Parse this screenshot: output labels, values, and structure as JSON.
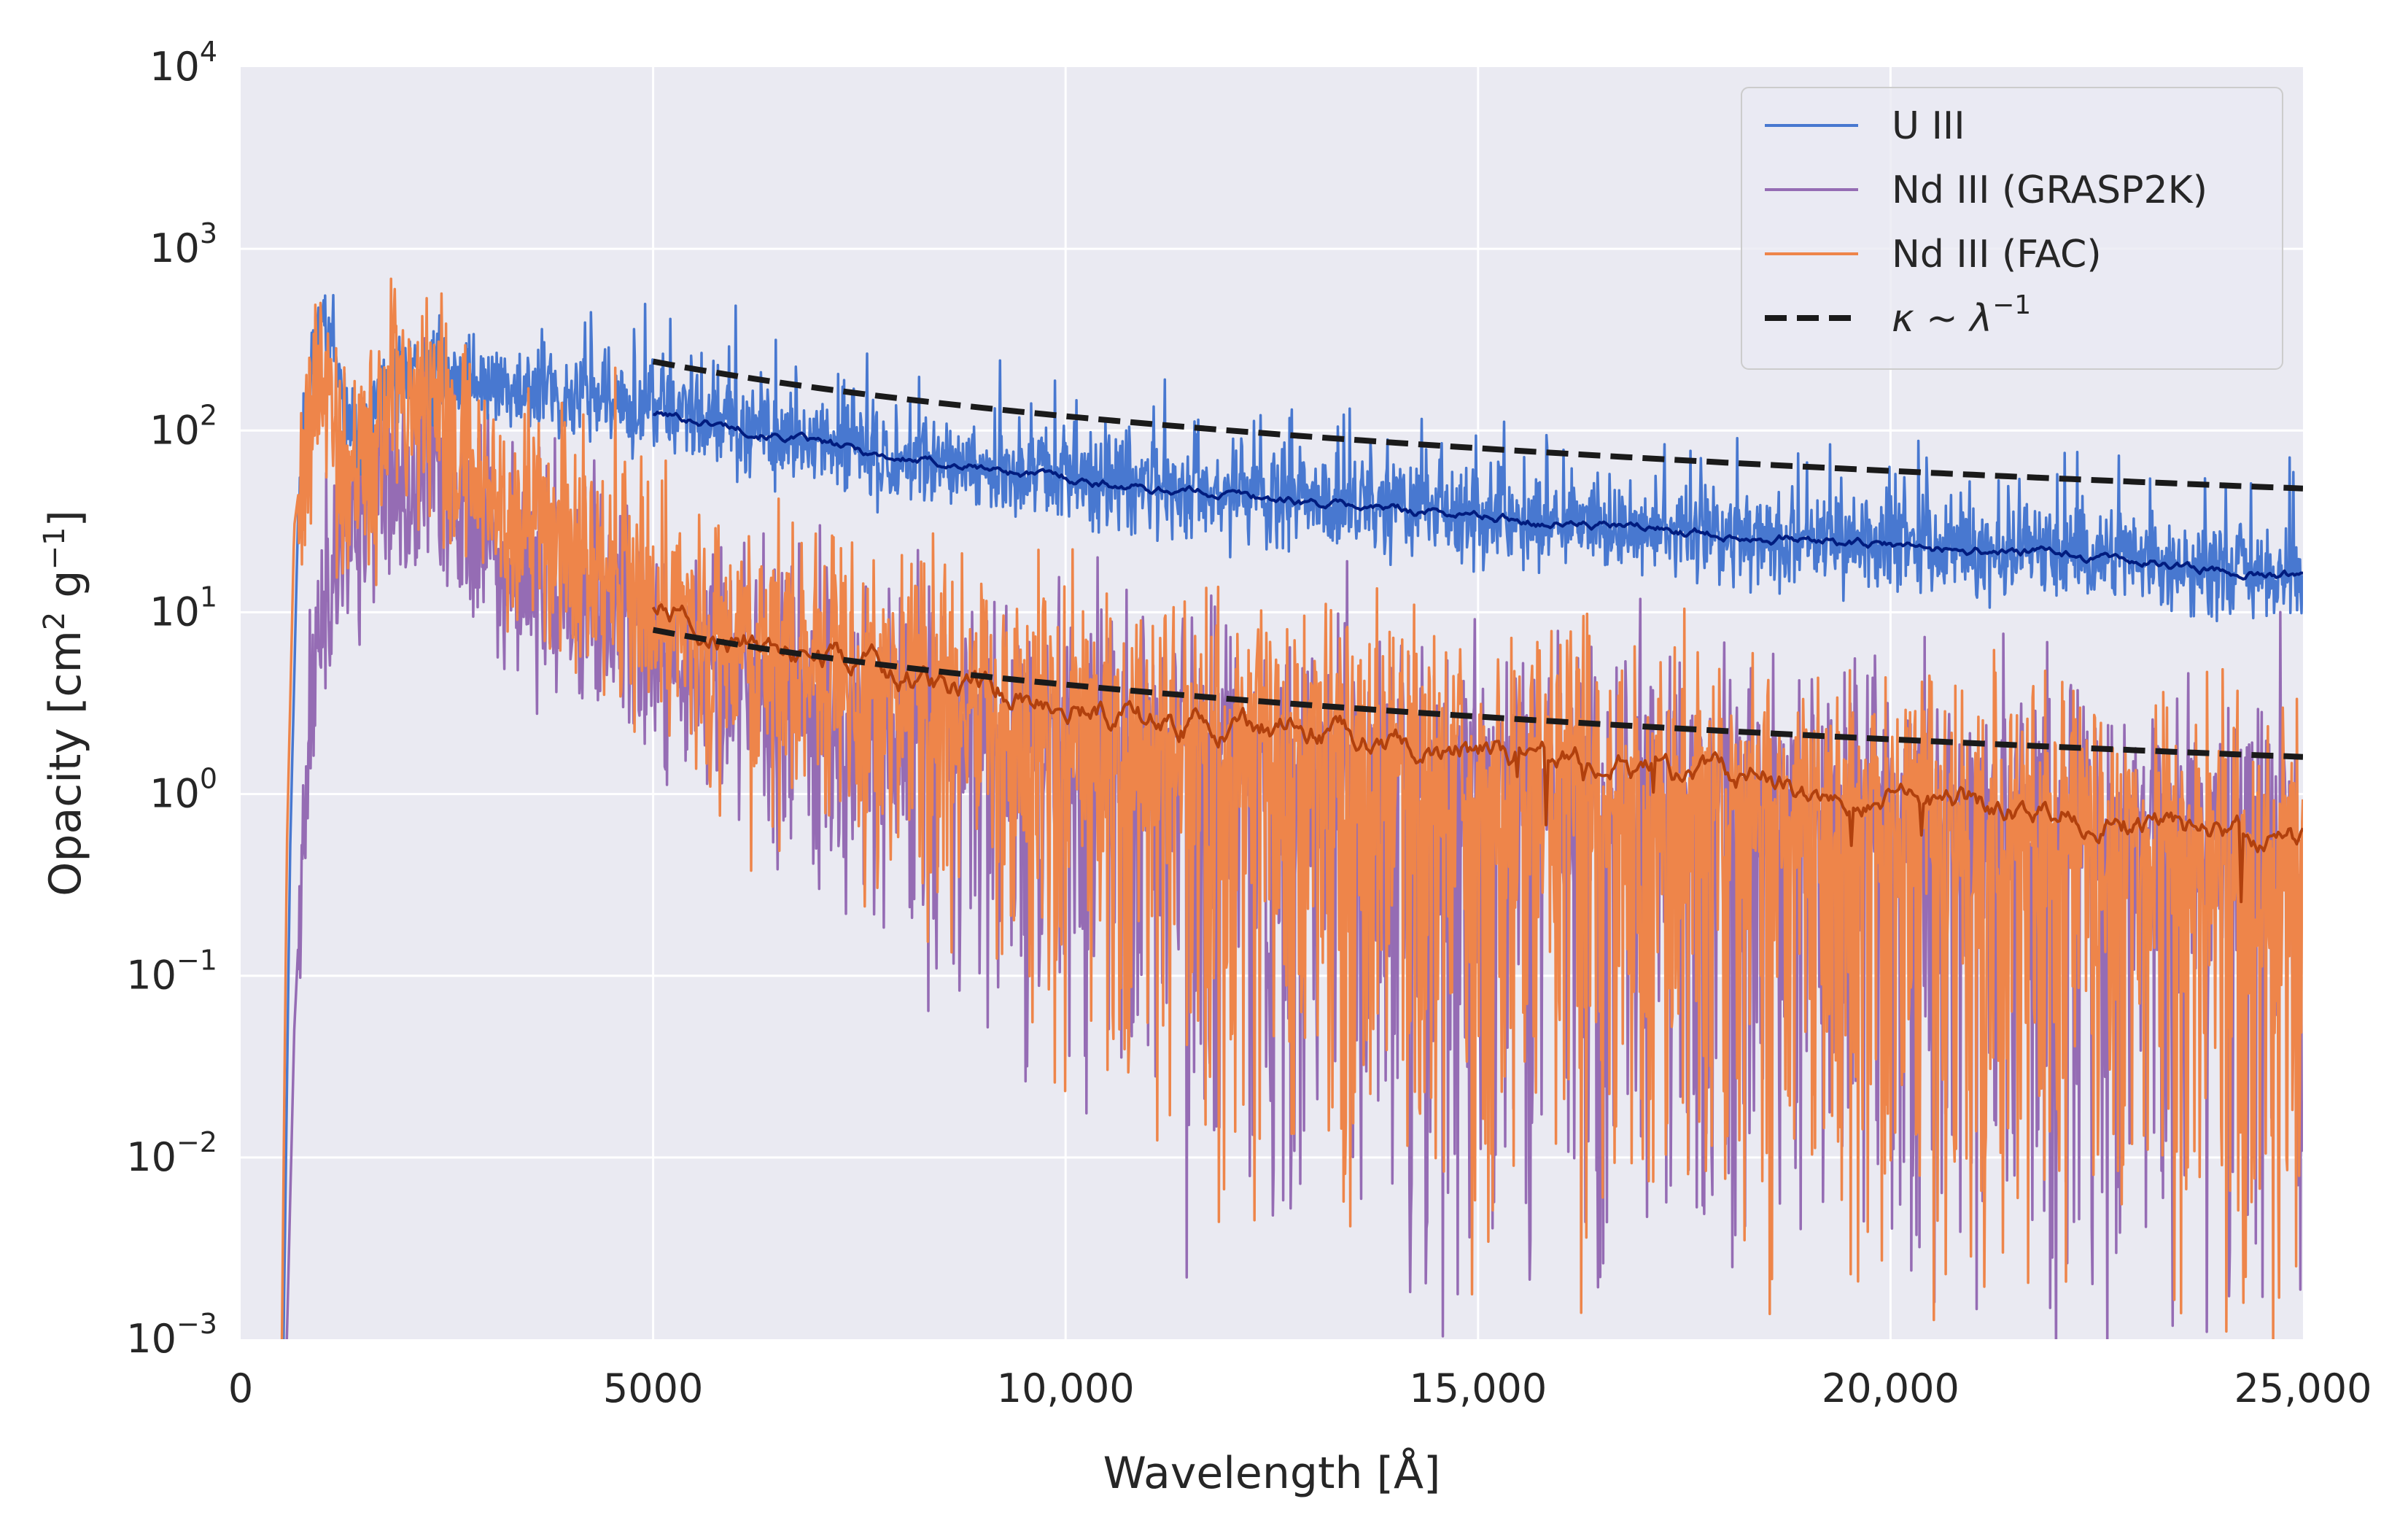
{
  "chart_data": {
    "type": "line",
    "title": "",
    "xlabel": "Wavelength [Å]",
    "ylabel": "Opacity [cm² g⁻¹]",
    "xlim": [
      0,
      25000
    ],
    "ylim": [
      0.001,
      10000
    ],
    "yscale": "log",
    "grid": true,
    "legend_position": "top-right",
    "x_ticks": [
      {
        "value": 0,
        "label": "0"
      },
      {
        "value": 5000,
        "label": "5000"
      },
      {
        "value": 10000,
        "label": "10,000"
      },
      {
        "value": 15000,
        "label": "15,000"
      },
      {
        "value": 20000,
        "label": "20,000"
      },
      {
        "value": 25000,
        "label": "25,000"
      }
    ],
    "y_ticks": [
      {
        "value": 0.001,
        "base": "10",
        "exp": "−3"
      },
      {
        "value": 0.01,
        "base": "10",
        "exp": "−2"
      },
      {
        "value": 0.1,
        "base": "10",
        "exp": "−1"
      },
      {
        "value": 1,
        "base": "10",
        "exp": "0"
      },
      {
        "value": 10,
        "base": "10",
        "exp": "1"
      },
      {
        "value": 100,
        "base": "10",
        "exp": "2"
      },
      {
        "value": 1000,
        "base": "10",
        "exp": "3"
      },
      {
        "value": 10000,
        "base": "10",
        "exp": "4"
      }
    ],
    "series": [
      {
        "name": "U III",
        "color": "#4878d0",
        "smooth_color": "#001c7f",
        "noise_dex": 0.12,
        "dip_dex": 0.05,
        "onset": 520,
        "x": [
          520,
          600,
          700,
          800,
          900,
          1000,
          1100,
          1200,
          1300,
          1400,
          1500,
          1600,
          1800,
          2000,
          2200,
          2400,
          2600,
          3000,
          3500,
          4000,
          4500,
          5000,
          6000,
          7000,
          8000,
          9000,
          10000,
          11000,
          12000,
          13000,
          14000,
          15000,
          16000,
          17000,
          18000,
          19000,
          20000,
          21000,
          22000,
          23000,
          24000,
          25000
        ],
        "y": [
          0.001,
          0.5,
          40,
          150,
          300,
          420,
          300,
          160,
          110,
          95,
          100,
          120,
          160,
          200,
          225,
          215,
          200,
          175,
          160,
          145,
          135,
          125,
          105,
          85,
          70,
          62,
          55,
          48,
          45,
          40,
          37,
          34,
          31,
          29,
          27,
          25,
          23,
          22,
          21,
          19,
          17,
          16
        ]
      },
      {
        "name": "Nd III (GRASP2K)",
        "color": "#956cb4",
        "smooth_color": "#591e71",
        "noise_dex": 0.3,
        "dip_dex": 2.6,
        "onset": 560,
        "x": [
          560,
          650,
          800,
          900,
          1000,
          1100,
          1200,
          1400,
          1600,
          1800,
          2000,
          2200,
          2400,
          2600,
          2800,
          3000,
          3200,
          3500,
          4000,
          4500,
          5000,
          6000,
          7000,
          8000,
          9000,
          10000,
          11000,
          12000,
          13000,
          14000,
          15000,
          16000,
          17000,
          18000,
          19000,
          20000,
          21000,
          22000,
          23000,
          24000,
          25000
        ],
        "y": [
          0.001,
          0.05,
          1.5,
          5,
          12,
          15,
          25,
          40,
          55,
          45,
          40,
          75,
          55,
          42,
          30,
          28,
          20,
          14,
          11,
          9,
          7,
          5,
          4,
          3.3,
          3,
          2.6,
          2.3,
          2,
          1.8,
          1.6,
          1.5,
          1.3,
          1.2,
          1.1,
          1,
          0.95,
          0.9,
          0.85,
          0.8,
          0.75,
          0.7
        ]
      },
      {
        "name": "Nd III (FAC)",
        "color": "#ee854a",
        "smooth_color": "#b1400d",
        "noise_dex": 0.32,
        "dip_dex": 2.4,
        "onset": 500,
        "x": [
          500,
          560,
          650,
          800,
          900,
          1000,
          1100,
          1200,
          1300,
          1500,
          1700,
          1900,
          2100,
          2300,
          2500,
          2800,
          3000,
          3300,
          3600,
          4000,
          4500,
          5000,
          5500,
          6000,
          7000,
          8000,
          9000,
          10000,
          11000,
          12000,
          13000,
          14000,
          15000,
          16000,
          17000,
          18000,
          19000,
          20000,
          21000,
          22000,
          23000,
          24000,
          25000
        ],
        "y": [
          0.001,
          0.5,
          30,
          100,
          150,
          210,
          120,
          60,
          40,
          60,
          100,
          130,
          140,
          120,
          90,
          60,
          50,
          40,
          28,
          20,
          16,
          11,
          9,
          7,
          5.5,
          4.5,
          3.8,
          3.2,
          2.6,
          2.4,
          2.2,
          1.9,
          1.7,
          1.5,
          1.3,
          1.2,
          1.1,
          1,
          0.9,
          0.8,
          0.7,
          0.6,
          0.55
        ]
      },
      {
        "name": "κ ~ λ⁻¹",
        "color": "#1a1a1a",
        "dashed": true,
        "x": [
          5000,
          25000
        ],
        "y": [
          240,
          48
        ]
      },
      {
        "name": "κ ~ λ⁻¹ (lower)",
        "color": "#1a1a1a",
        "dashed": true,
        "legend": false,
        "x": [
          5000,
          25000
        ],
        "y": [
          8,
          1.6
        ]
      }
    ],
    "legend": [
      {
        "label": "U III",
        "color": "#4878d0",
        "style": "solid"
      },
      {
        "label": "Nd III (GRASP2K)",
        "color": "#956cb4",
        "style": "solid"
      },
      {
        "label": "Nd III (FAC)",
        "color": "#ee854a",
        "style": "solid"
      },
      {
        "label_prefix": "κ ~ λ",
        "label_exp": "−1",
        "color": "#1a1a1a",
        "style": "dashed"
      }
    ]
  }
}
